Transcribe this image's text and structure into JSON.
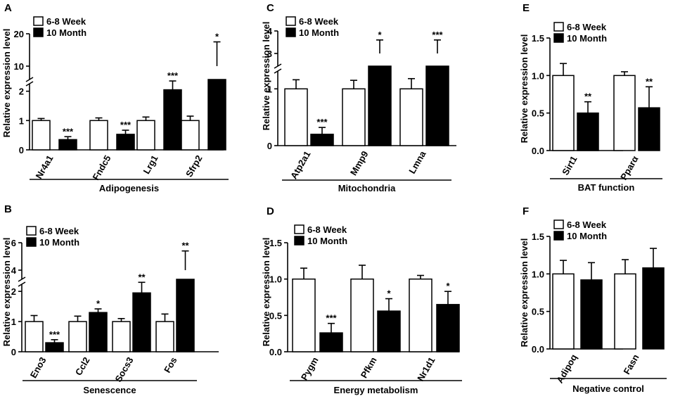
{
  "figure_title": "",
  "legend": {
    "open": "6-8 Week",
    "filled": "10 Month"
  },
  "chart_data": [
    {
      "id": "A",
      "type": "bar",
      "panel_label": "A",
      "ylabel": "Relative expression level",
      "group_label": "Adipogenesis",
      "categories": [
        "Nr4a1",
        "Fndc5",
        "Lrg1",
        "Sfrp2"
      ],
      "series": [
        {
          "name": "6-8 Week",
          "values": [
            1.0,
            1.0,
            1.0,
            1.0
          ],
          "errors": [
            0.07,
            0.09,
            0.12,
            0.15
          ]
        },
        {
          "name": "10 Month",
          "values": [
            0.35,
            0.53,
            2.05,
            10.0
          ],
          "errors": [
            0.1,
            0.14,
            0.3,
            7.5
          ]
        }
      ],
      "significance": [
        "***",
        "***",
        "***",
        "*"
      ],
      "axis_break": true,
      "yticks_lower": [
        "0",
        "1",
        "2"
      ],
      "yticks_upper": [
        "10",
        "20"
      ],
      "lower_range": [
        0,
        2.4
      ],
      "upper_range": [
        10,
        20
      ]
    },
    {
      "id": "B",
      "type": "bar",
      "panel_label": "B",
      "ylabel": "Relative expression level",
      "group_label": "Senescence",
      "categories": [
        "Eno3",
        "Ccl2",
        "Socs3",
        "Fos"
      ],
      "series": [
        {
          "name": "6-8 Week",
          "values": [
            1.0,
            1.0,
            1.0,
            1.0
          ],
          "errors": [
            0.2,
            0.18,
            0.1,
            0.25
          ]
        },
        {
          "name": "10 Month",
          "values": [
            0.3,
            1.3,
            1.95,
            4.0
          ],
          "errors": [
            0.1,
            0.12,
            0.35,
            1.4
          ]
        }
      ],
      "significance": [
        "***",
        "*",
        "**",
        "**"
      ],
      "axis_break": true,
      "yticks_lower": [
        "0",
        "1",
        "2"
      ],
      "yticks_upper": [
        "4",
        "6"
      ],
      "lower_range": [
        0,
        2.4
      ],
      "upper_range": [
        4,
        6
      ]
    },
    {
      "id": "C",
      "type": "bar",
      "panel_label": "C",
      "ylabel": "Relative expression level",
      "group_label": "Mitochondria",
      "categories": [
        "Atp2a1",
        "Mmp9",
        "Lmna"
      ],
      "series": [
        {
          "name": "6-8 Week",
          "values": [
            1.0,
            1.0,
            1.0
          ],
          "errors": [
            0.16,
            0.15,
            0.18
          ]
        },
        {
          "name": "10 Month",
          "values": [
            0.2,
            3.0,
            3.0
          ],
          "errors": [
            0.12,
            0.6,
            0.6
          ]
        }
      ],
      "significance": [
        "***",
        "*",
        "***"
      ],
      "axis_break": true,
      "yticks_lower": [
        "0",
        "1"
      ],
      "yticks_upper": [
        "3",
        "4"
      ],
      "lower_range": [
        0,
        1.4
      ],
      "upper_range": [
        3,
        4
      ]
    },
    {
      "id": "D",
      "type": "bar",
      "panel_label": "D",
      "ylabel": "Relative expression level",
      "group_label": "Energy metabolism",
      "categories": [
        "Pygm",
        "Pfkm",
        "Nr1d1"
      ],
      "series": [
        {
          "name": "6-8 Week",
          "values": [
            1.0,
            1.0,
            1.0
          ],
          "errors": [
            0.15,
            0.19,
            0.05
          ]
        },
        {
          "name": "10 Month",
          "values": [
            0.26,
            0.56,
            0.65
          ],
          "errors": [
            0.13,
            0.17,
            0.18
          ]
        }
      ],
      "significance": [
        "***",
        "*",
        "*"
      ],
      "axis_break": false,
      "yticks": [
        "0.0",
        "0.5",
        "1.0",
        "1.5"
      ],
      "ylim": [
        0,
        1.5
      ]
    },
    {
      "id": "E",
      "type": "bar",
      "panel_label": "E",
      "ylabel": "Relative expression level",
      "group_label": "BAT function",
      "categories": [
        "Sirt1",
        "Pparα"
      ],
      "series": [
        {
          "name": "6-8 Week",
          "values": [
            1.0,
            1.0
          ],
          "errors": [
            0.16,
            0.05
          ]
        },
        {
          "name": "10 Month",
          "values": [
            0.5,
            0.57
          ],
          "errors": [
            0.15,
            0.28
          ]
        }
      ],
      "significance": [
        "**",
        "**"
      ],
      "axis_break": false,
      "yticks": [
        "0.0",
        "0.5",
        "1.0",
        "1.5"
      ],
      "ylim": [
        0,
        1.5
      ]
    },
    {
      "id": "F",
      "type": "bar",
      "panel_label": "F",
      "ylabel": "Relative expression level",
      "group_label": "Negative control",
      "categories": [
        "Adipoq",
        "Fasn"
      ],
      "series": [
        {
          "name": "6-8 Week",
          "values": [
            1.0,
            1.0
          ],
          "errors": [
            0.18,
            0.19
          ]
        },
        {
          "name": "10 Month",
          "values": [
            0.92,
            1.08
          ],
          "errors": [
            0.23,
            0.26
          ]
        }
      ],
      "significance": [
        "",
        ""
      ],
      "axis_break": false,
      "yticks": [
        "0.0",
        "0.5",
        "1.0",
        "1.5"
      ],
      "ylim": [
        0,
        1.5
      ]
    }
  ]
}
